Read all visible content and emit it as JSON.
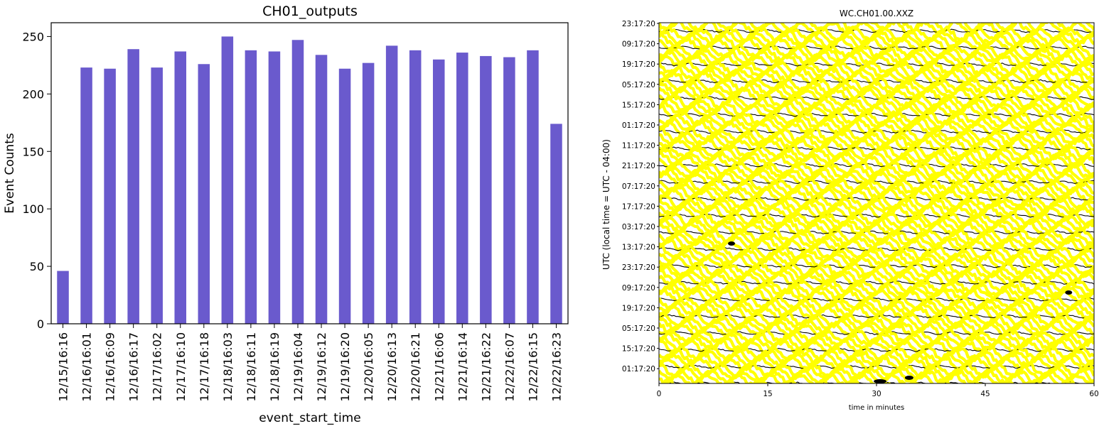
{
  "chart_data": [
    {
      "type": "bar",
      "title": "CH01_outputs",
      "xlabel": "event_start_time",
      "ylabel": "Event Counts",
      "ylim": [
        0,
        262
      ],
      "yticks": [
        0,
        50,
        100,
        150,
        200,
        250
      ],
      "bar_color": "#6a5acd",
      "grid": false,
      "categories": [
        "12/15/16:16",
        "12/16/16:01",
        "12/16/16:09",
        "12/16/16:17",
        "12/17/16:02",
        "12/17/16:10",
        "12/17/16:18",
        "12/18/16:03",
        "12/18/16:11",
        "12/18/16:19",
        "12/19/16:04",
        "12/19/16:12",
        "12/19/16:20",
        "12/20/16:05",
        "12/20/16:13",
        "12/20/16:21",
        "12/21/16:06",
        "12/21/16:14",
        "12/21/16:22",
        "12/22/16:07",
        "12/22/16:15",
        "12/22/16:23"
      ],
      "values": [
        46,
        223,
        222,
        239,
        223,
        237,
        226,
        250,
        238,
        237,
        247,
        234,
        222,
        227,
        242,
        238,
        230,
        236,
        233,
        232,
        238,
        174
      ]
    },
    {
      "type": "helicorder",
      "title": "WC.CH01.00.XXZ",
      "xlabel": "time in minutes",
      "ylabel": "UTC (local time = UTC - 04:00)",
      "xlim": [
        0,
        60
      ],
      "xticks": [
        0,
        15,
        30,
        45,
        60
      ],
      "row_labels": [
        "23:17:20",
        "09:17:20",
        "19:17:20",
        "05:17:20",
        "15:17:20",
        "01:17:20",
        "11:17:20",
        "21:17:20",
        "07:17:20",
        "17:17:20",
        "03:17:20",
        "13:17:20",
        "23:17:20",
        "09:17:20",
        "19:17:20",
        "05:17:20",
        "15:17:20",
        "01:17:20"
      ],
      "trace_colors": [
        "#ffff00",
        "#000000"
      ],
      "background": "#ffffff"
    }
  ]
}
